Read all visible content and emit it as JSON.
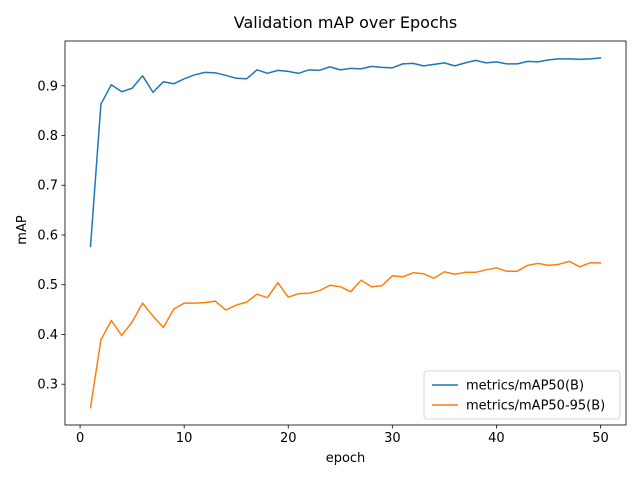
{
  "chart_data": {
    "type": "line",
    "title": "Validation mAP over Epochs",
    "xlabel": "epoch",
    "ylabel": "mAP",
    "xlim": [
      -1.45,
      52.45
    ],
    "ylim": [
      0.218,
      0.99
    ],
    "xticks": [
      0,
      10,
      20,
      30,
      40,
      50
    ],
    "yticks": [
      0.3,
      0.4,
      0.5,
      0.6,
      0.7,
      0.8,
      0.9
    ],
    "grid": false,
    "legend_position": "lower-right",
    "x": [
      1,
      2,
      3,
      4,
      5,
      6,
      7,
      8,
      9,
      10,
      11,
      12,
      13,
      14,
      15,
      16,
      17,
      18,
      19,
      20,
      21,
      22,
      23,
      24,
      25,
      26,
      27,
      28,
      29,
      30,
      31,
      32,
      33,
      34,
      35,
      36,
      37,
      38,
      39,
      40,
      41,
      42,
      43,
      44,
      45,
      46,
      47,
      48,
      49,
      50
    ],
    "series": [
      {
        "name": "metrics/mAP50(B)",
        "color": "#1f77b4",
        "values": [
          0.577,
          0.863,
          0.902,
          0.888,
          0.895,
          0.92,
          0.887,
          0.908,
          0.904,
          0.914,
          0.922,
          0.927,
          0.926,
          0.921,
          0.915,
          0.914,
          0.932,
          0.925,
          0.931,
          0.929,
          0.925,
          0.932,
          0.931,
          0.938,
          0.932,
          0.935,
          0.934,
          0.939,
          0.937,
          0.936,
          0.944,
          0.945,
          0.94,
          0.943,
          0.946,
          0.94,
          0.946,
          0.951,
          0.946,
          0.948,
          0.944,
          0.944,
          0.949,
          0.948,
          0.952,
          0.954,
          0.954,
          0.953,
          0.954,
          0.956
        ]
      },
      {
        "name": "metrics/mAP50-95(B)",
        "color": "#ff7f0e",
        "values": [
          0.253,
          0.389,
          0.428,
          0.398,
          0.425,
          0.463,
          0.437,
          0.414,
          0.451,
          0.463,
          0.463,
          0.464,
          0.467,
          0.449,
          0.459,
          0.465,
          0.481,
          0.474,
          0.504,
          0.475,
          0.482,
          0.483,
          0.488,
          0.499,
          0.496,
          0.486,
          0.509,
          0.496,
          0.498,
          0.518,
          0.516,
          0.524,
          0.522,
          0.513,
          0.526,
          0.521,
          0.525,
          0.525,
          0.53,
          0.534,
          0.527,
          0.527,
          0.539,
          0.543,
          0.539,
          0.541,
          0.547,
          0.536,
          0.544,
          0.544
        ]
      }
    ]
  }
}
